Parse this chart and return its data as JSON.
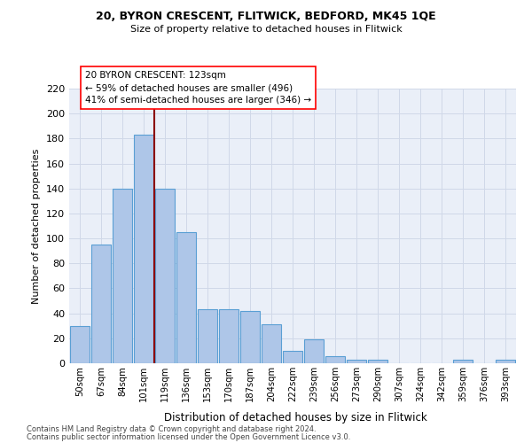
{
  "title1": "20, BYRON CRESCENT, FLITWICK, BEDFORD, MK45 1QE",
  "title2": "Size of property relative to detached houses in Flitwick",
  "xlabel": "Distribution of detached houses by size in Flitwick",
  "ylabel": "Number of detached properties",
  "categories": [
    "50sqm",
    "67sqm",
    "84sqm",
    "101sqm",
    "119sqm",
    "136sqm",
    "153sqm",
    "170sqm",
    "187sqm",
    "204sqm",
    "222sqm",
    "239sqm",
    "256sqm",
    "273sqm",
    "290sqm",
    "307sqm",
    "324sqm",
    "342sqm",
    "359sqm",
    "376sqm",
    "393sqm"
  ],
  "values": [
    30,
    95,
    140,
    183,
    140,
    105,
    43,
    43,
    42,
    31,
    10,
    19,
    6,
    3,
    3,
    0,
    0,
    0,
    3,
    0,
    3
  ],
  "bar_color": "#aec6e8",
  "bar_edge_color": "#5a9fd4",
  "grid_color": "#d0d8e8",
  "bg_color": "#eaeff8",
  "annotation_line1": "20 BYRON CRESCENT: 123sqm",
  "annotation_line2": "← 59% of detached houses are smaller (496)",
  "annotation_line3": "41% of semi-detached houses are larger (346) →",
  "redline_color": "#8b0000",
  "footnote1": "Contains HM Land Registry data © Crown copyright and database right 2024.",
  "footnote2": "Contains public sector information licensed under the Open Government Licence v3.0.",
  "ylim": [
    0,
    220
  ],
  "yticks": [
    0,
    20,
    40,
    60,
    80,
    100,
    120,
    140,
    160,
    180,
    200,
    220
  ]
}
